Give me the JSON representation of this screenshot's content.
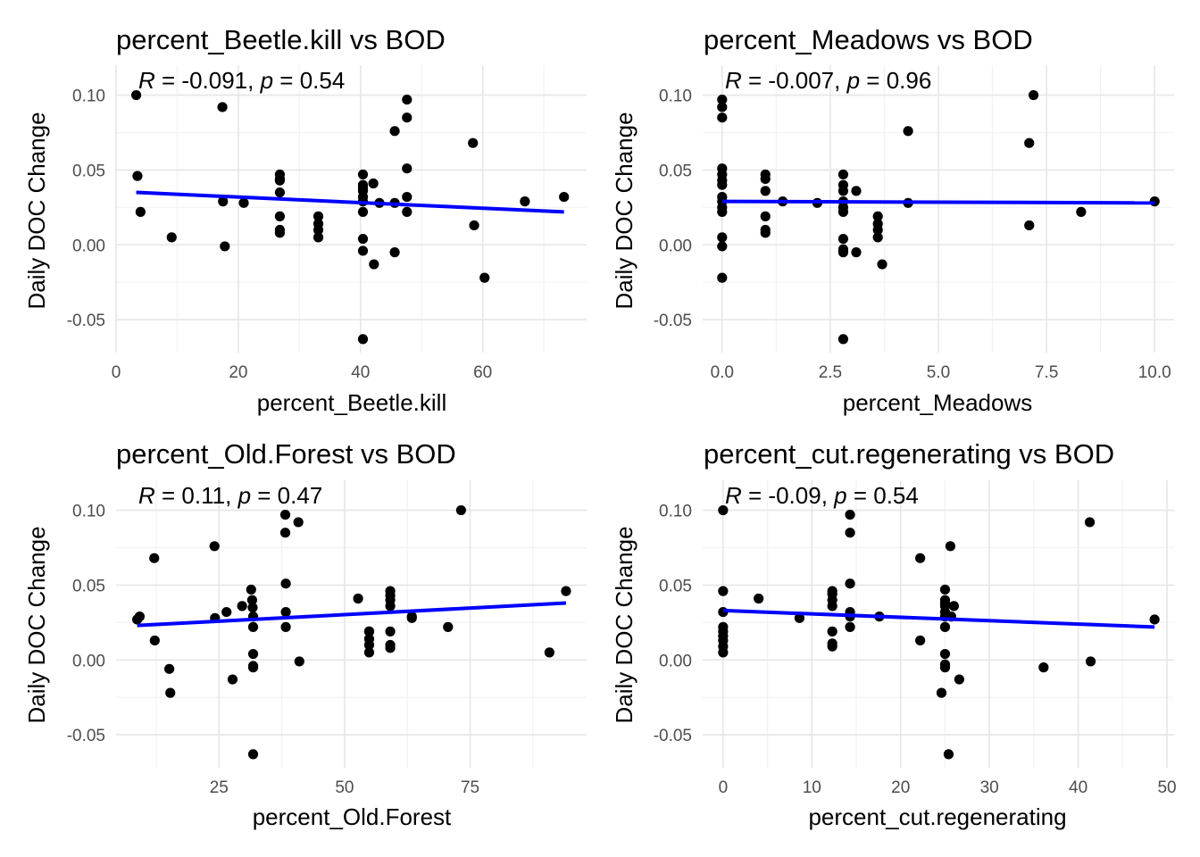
{
  "chart_data": [
    {
      "type": "scatter",
      "title": "percent_Beetle.kill vs BOD",
      "stat": {
        "r_value": "-0.091",
        "p_value": "0.54"
      },
      "xlabel": "percent_Beetle.kill",
      "ylabel": "Daily DOC Change",
      "xlim": [
        0,
        77
      ],
      "ylim": [
        -0.072,
        0.12
      ],
      "xticks": [
        0,
        20,
        40,
        60
      ],
      "xtick_labels": [
        "0",
        "20",
        "40",
        "60"
      ],
      "yticks": [
        -0.05,
        0,
        0.05,
        0.1
      ],
      "ytick_labels": [
        "-0.05",
        "0.00",
        "0.05",
        "0.10"
      ],
      "grid": true,
      "trend_line": {
        "x": [
          3.3,
          73.3
        ],
        "y": [
          0.035,
          0.022
        ],
        "color": "#0000ff"
      },
      "points_color": "#000000",
      "series": [
        {
          "x": [
            3.3,
            3.5,
            4.0,
            9.1,
            17.4,
            17.5,
            17.8,
            20.9,
            26.8,
            26.8,
            26.8,
            26.8,
            26.8,
            26.8,
            26.8,
            33.1,
            33.1,
            33.1,
            33.1,
            40.4,
            40.4,
            40.4,
            40.4,
            40.4,
            40.4,
            40.4,
            40.4,
            40.4,
            40.4,
            42.2,
            42.1,
            43.1,
            45.6,
            45.6,
            45.6,
            47.6,
            47.6,
            47.6,
            47.6,
            47.6,
            58.4,
            58.6,
            60.3,
            66.9,
            73.3
          ],
          "y": [
            0.1,
            0.046,
            0.022,
            0.005,
            0.092,
            0.029,
            -0.001,
            0.028,
            0.047,
            0.043,
            0.035,
            0.019,
            0.01,
            0.008,
            0.044,
            0.019,
            0.014,
            0.01,
            0.005,
            0.047,
            0.04,
            0.036,
            0.032,
            0.029,
            0.022,
            0.004,
            -0.004,
            -0.063,
            0.038,
            -0.013,
            0.041,
            0.028,
            0.076,
            0.028,
            -0.005,
            0.097,
            0.085,
            0.051,
            0.032,
            0.022,
            0.068,
            0.013,
            -0.022,
            0.029,
            0.032
          ]
        }
      ]
    },
    {
      "type": "scatter",
      "title": "percent_Meadows vs BOD",
      "stat": {
        "r_value": "-0.007",
        "p_value": "0.96"
      },
      "xlabel": "percent_Meadows",
      "ylabel": "Daily DOC Change",
      "xlim": [
        -0.45,
        10.45
      ],
      "ylim": [
        -0.072,
        0.12
      ],
      "xticks": [
        0,
        2.5,
        5,
        7.5,
        10
      ],
      "xtick_labels": [
        "0.0",
        "2.5",
        "5.0",
        "7.5",
        "10.0"
      ],
      "yticks": [
        -0.05,
        0,
        0.05,
        0.1
      ],
      "ytick_labels": [
        "-0.05",
        "0.00",
        "0.05",
        "0.10"
      ],
      "grid": true,
      "trend_line": {
        "x": [
          0,
          10
        ],
        "y": [
          0.029,
          0.028
        ],
        "color": "#0000ff"
      },
      "points_color": "#000000",
      "series": [
        {
          "x": [
            0,
            0,
            0,
            0,
            0,
            0,
            0,
            0,
            0,
            0,
            0,
            0,
            0,
            0,
            1.0,
            1.0,
            1.0,
            1.0,
            1.0,
            1.0,
            1.4,
            2.2,
            2.8,
            2.8,
            2.8,
            2.8,
            2.8,
            2.8,
            2.8,
            2.8,
            2.8,
            2.8,
            3.1,
            3.1,
            3.6,
            3.6,
            3.6,
            3.6,
            3.7,
            4.3,
            4.3,
            7.1,
            7.1,
            7.2,
            8.3,
            10.0
          ],
          "y": [
            0.097,
            0.092,
            0.085,
            0.051,
            0.047,
            0.043,
            0.04,
            0.032,
            0.029,
            0.025,
            0.022,
            0.005,
            -0.001,
            -0.022,
            0.047,
            0.044,
            0.036,
            0.019,
            0.01,
            0.008,
            0.029,
            0.028,
            0.047,
            0.04,
            0.036,
            0.029,
            0.025,
            0.022,
            0.004,
            -0.003,
            -0.005,
            -0.063,
            0.036,
            -0.005,
            0.019,
            0.014,
            0.01,
            0.005,
            -0.013,
            0.076,
            0.028,
            0.068,
            0.013,
            0.1,
            0.022,
            0.029
          ]
        }
      ]
    },
    {
      "type": "scatter",
      "title": "percent_Old.Forest vs BOD",
      "stat": {
        "r_value": "0.11",
        "p_value": "0.47"
      },
      "xlabel": "percent_Old.Forest",
      "ylabel": "Daily DOC Change",
      "xlim": [
        4.5,
        98.2
      ],
      "ylim": [
        -0.072,
        0.12
      ],
      "xticks": [
        25,
        50,
        75
      ],
      "xtick_labels": [
        "25",
        "50",
        "75"
      ],
      "yticks": [
        -0.05,
        0,
        0.05,
        0.1
      ],
      "ytick_labels": [
        "-0.05",
        "0.00",
        "0.05",
        "0.10"
      ],
      "grid": true,
      "trend_line": {
        "x": [
          8.7,
          94.1
        ],
        "y": [
          0.023,
          0.038
        ],
        "color": "#0000ff"
      },
      "points_color": "#000000",
      "series": [
        {
          "x": [
            8.7,
            9.2,
            12.1,
            12.2,
            15.1,
            15.3,
            24.1,
            24.2,
            26.5,
            27.7,
            29.6,
            31.4,
            31.6,
            31.7,
            31.8,
            31.8,
            31.8,
            31.8,
            31.8,
            31.8,
            38.2,
            38.2,
            38.3,
            38.3,
            38.3,
            40.8,
            41.0,
            52.7,
            54.9,
            54.9,
            54.9,
            54.9,
            54.9,
            59.1,
            59.1,
            59.1,
            59.1,
            59.1,
            59.1,
            59.1,
            63.4,
            63.4,
            70.6,
            73.2,
            90.8,
            94.1
          ],
          "y": [
            0.027,
            0.029,
            0.068,
            0.013,
            -0.006,
            -0.022,
            0.076,
            0.028,
            0.032,
            -0.013,
            0.036,
            0.047,
            0.04,
            0.035,
            0.029,
            0.022,
            0.004,
            -0.004,
            -0.005,
            -0.063,
            0.097,
            0.085,
            0.051,
            0.032,
            0.022,
            0.092,
            -0.001,
            0.041,
            0.019,
            0.014,
            0.01,
            0.005,
            0.019,
            0.046,
            0.043,
            0.04,
            0.036,
            0.019,
            0.01,
            0.008,
            0.029,
            0.028,
            0.022,
            0.1,
            0.005,
            0.046
          ]
        }
      ]
    },
    {
      "type": "scatter",
      "title": "percent_cut.regenerating vs BOD",
      "stat": {
        "r_value": "-0.09",
        "p_value": "0.54"
      },
      "xlabel": "percent_cut.regenerating",
      "ylabel": "Daily DOC Change",
      "xlim": [
        -2.3,
        50.8
      ],
      "ylim": [
        -0.072,
        0.12
      ],
      "xticks": [
        0,
        10,
        20,
        30,
        40,
        50
      ],
      "xtick_labels": [
        "0",
        "10",
        "20",
        "30",
        "40",
        "50"
      ],
      "yticks": [
        -0.05,
        0,
        0.05,
        0.1
      ],
      "ytick_labels": [
        "-0.05",
        "0.00",
        "0.05",
        "0.10"
      ],
      "grid": true,
      "trend_line": {
        "x": [
          0,
          48.6
        ],
        "y": [
          0.033,
          0.022
        ],
        "color": "#0000ff"
      },
      "points_color": "#000000",
      "series": [
        {
          "x": [
            0,
            0,
            0,
            0,
            0,
            0,
            0,
            0,
            0,
            4.0,
            8.6,
            12.3,
            12.3,
            12.3,
            12.3,
            12.3,
            12.3,
            12.3,
            14.3,
            14.3,
            14.3,
            14.3,
            14.3,
            14.3,
            17.6,
            22.2,
            22.2,
            24.6,
            25.0,
            25.0,
            25.0,
            25.0,
            25.0,
            25.0,
            25.0,
            25.0,
            25.0,
            25.0,
            25.4,
            25.6,
            25.7,
            26.0,
            26.6,
            36.1,
            41.3,
            41.4,
            48.6
          ],
          "y": [
            0.1,
            0.046,
            0.032,
            0.022,
            0.019,
            0.016,
            0.013,
            0.009,
            0.005,
            0.041,
            0.028,
            0.046,
            0.044,
            0.04,
            0.036,
            0.019,
            0.011,
            0.009,
            0.097,
            0.085,
            0.051,
            0.032,
            0.029,
            0.022,
            0.029,
            0.068,
            0.013,
            -0.022,
            0.047,
            0.04,
            0.036,
            0.032,
            0.029,
            0.022,
            0.004,
            -0.003,
            -0.005,
            0.038,
            -0.063,
            0.076,
            0.029,
            0.036,
            -0.013,
            -0.005,
            0.092,
            -0.001,
            0.027
          ]
        }
      ]
    }
  ]
}
